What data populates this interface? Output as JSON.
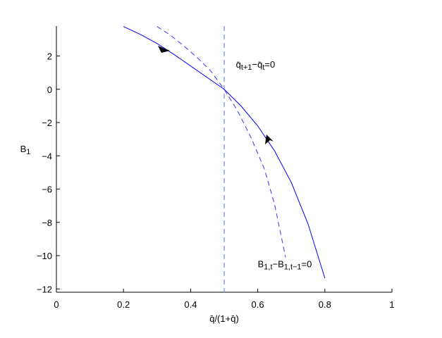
{
  "chart_data": {
    "type": "line",
    "xlabel": [
      "q̄/(1+q̄)"
    ],
    "ylabel": [
      "B",
      "1"
    ],
    "xlim": [
      0,
      1
    ],
    "ylim": [
      -12.2,
      3.8
    ],
    "xticks": [
      0,
      0.2,
      0.4,
      0.6,
      0.8,
      1
    ],
    "yticks": [
      {
        "value": -12,
        "label": "−12"
      },
      {
        "value": -10,
        "label": "−10"
      },
      {
        "value": -8,
        "label": "−8"
      },
      {
        "value": -6,
        "label": "−6"
      },
      {
        "value": -4,
        "label": "−4"
      },
      {
        "value": -2,
        "label": "−2"
      },
      0,
      2
    ],
    "series": [
      {
        "color": "#0000ff",
        "style": "solid",
        "x": [
          0.2,
          0.25,
          0.3,
          0.35,
          0.4,
          0.45,
          0.5,
          0.55,
          0.6,
          0.65,
          0.7,
          0.75,
          0.8
        ],
        "values": [
          3.77,
          3.3,
          2.75,
          2.1,
          1.4,
          0.7,
          0,
          -1.0,
          -2.2,
          -3.7,
          -5.6,
          -8.1,
          -11.35
        ]
      },
      {
        "color": "#3333ff",
        "style": "dashed",
        "x": [
          0.3,
          0.34,
          0.38,
          0.42,
          0.46,
          0.5,
          0.54,
          0.58,
          0.62,
          0.65,
          0.683
        ],
        "values": [
          3.77,
          3.25,
          2.6,
          1.9,
          1.1,
          0,
          -1.3,
          -2.9,
          -4.8,
          -6.9,
          -10.1
        ]
      }
    ],
    "vline": {
      "x": 0.5,
      "color": "#5577ff",
      "style": "dashed"
    },
    "annotations": [
      {
        "parts": [
          "q̄",
          "t+1",
          "−q̄",
          "t",
          "=0"
        ],
        "x": 0.535,
        "y": 1.3
      },
      {
        "parts": [
          "B",
          "1,t",
          "−B",
          "1,t−1",
          "=0"
        ],
        "x": 0.6,
        "y": -10.7
      }
    ]
  }
}
